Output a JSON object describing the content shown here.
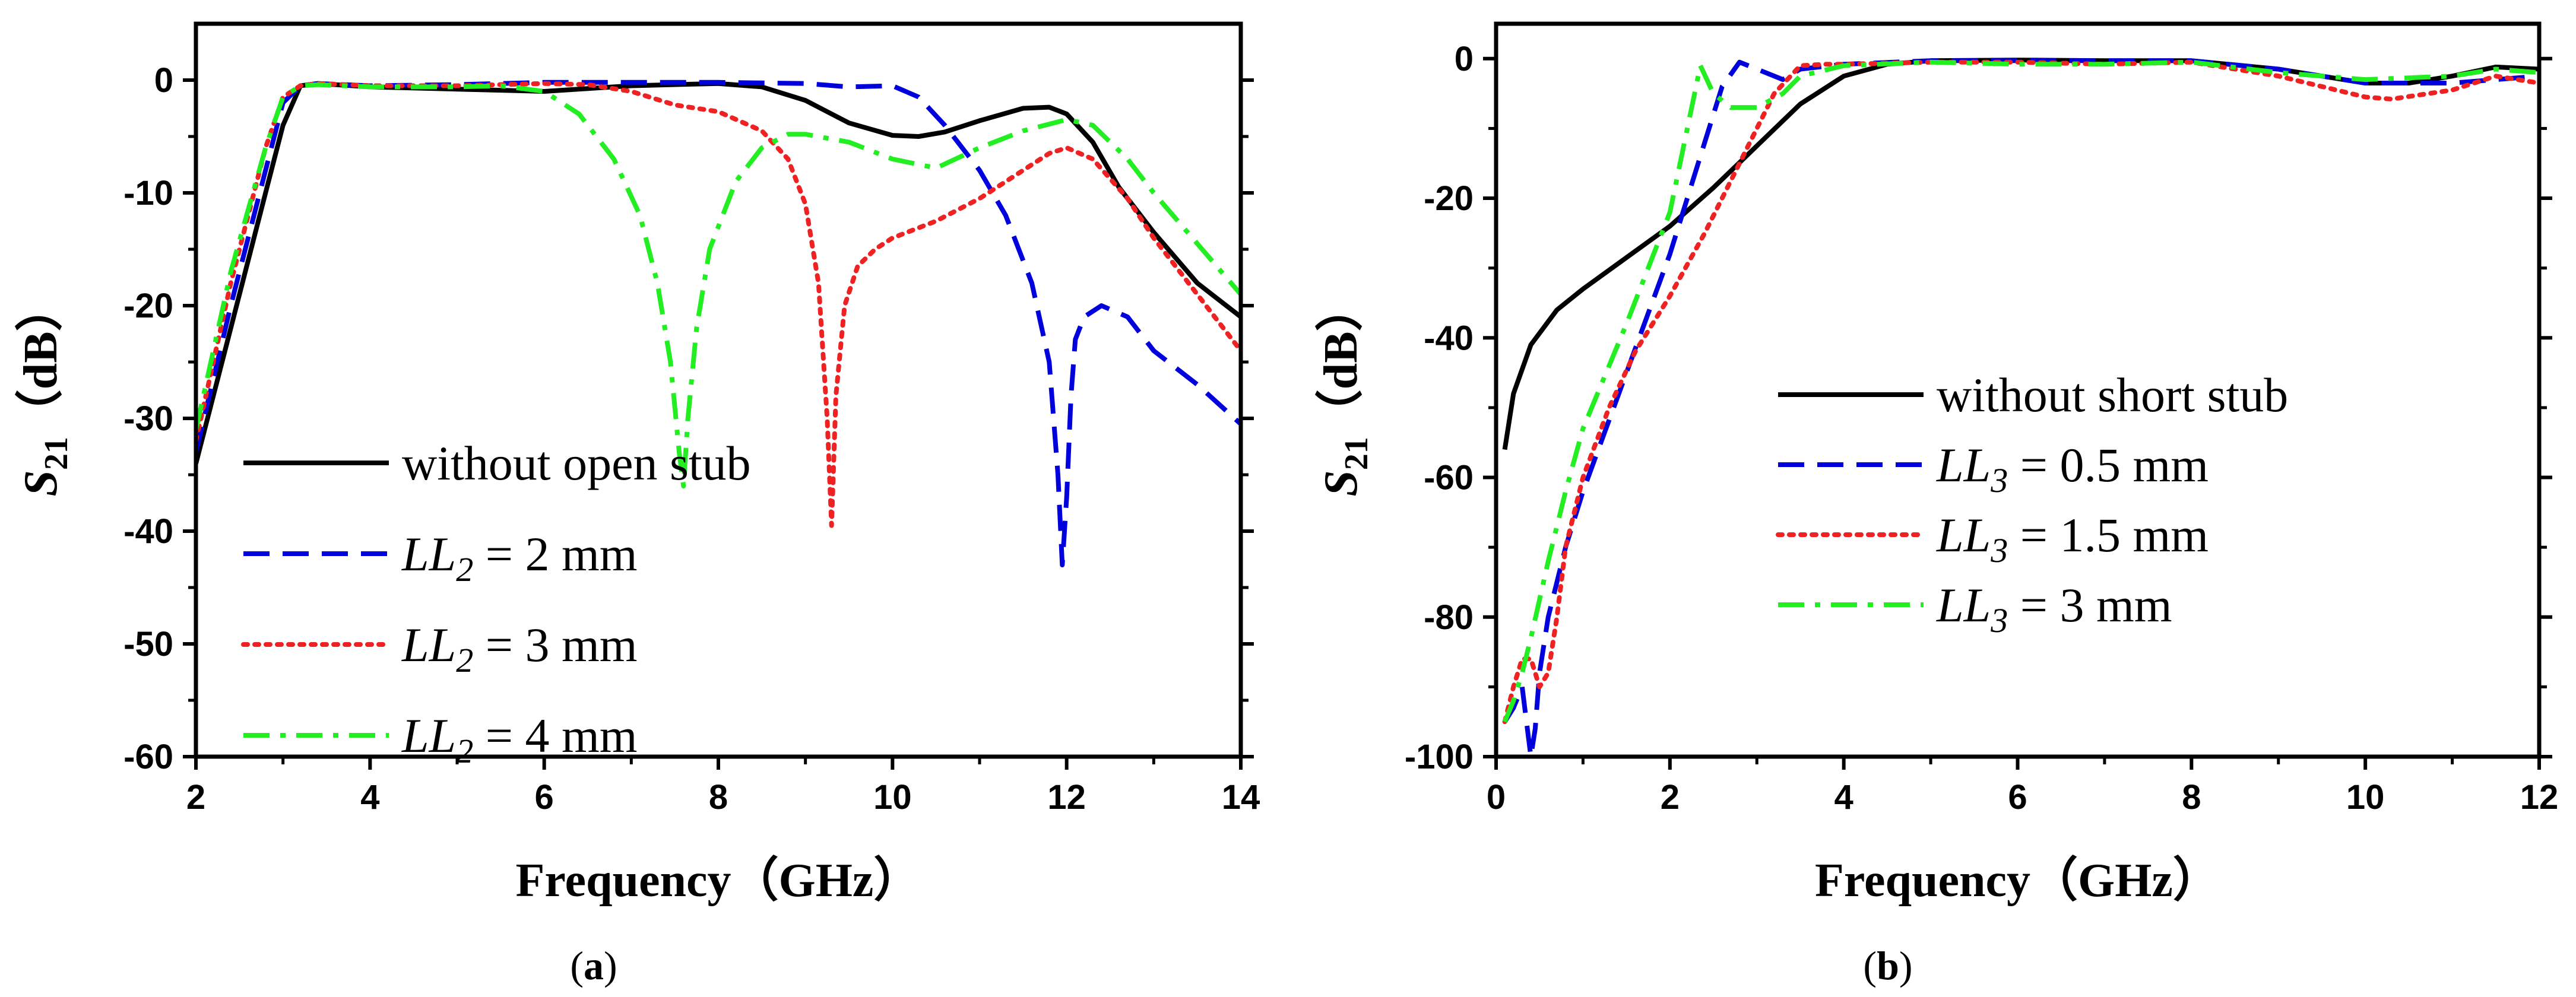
{
  "chart_data": [
    {
      "type": "line",
      "panel": "a",
      "caption": "(a)",
      "caption_letter": "a",
      "xlabel": "Frequency（GHz）",
      "ylabel": "S21（dB）",
      "ylabel_main": "S",
      "ylabel_sub": "21",
      "ylabel_unit": "（dB）",
      "xlim": [
        2,
        14
      ],
      "ylim": [
        -60,
        5
      ],
      "xticks": [
        2,
        4,
        6,
        8,
        10,
        12,
        14
      ],
      "xtick_labels": [
        "2",
        "4",
        "6",
        "8",
        "10",
        "12",
        "14"
      ],
      "yticks": [
        0,
        -10,
        -20,
        -30,
        -40,
        -50,
        -60
      ],
      "ytick_labels": [
        "0",
        "-10",
        "-20",
        "-30",
        "-40",
        "-50",
        "-60"
      ],
      "legend_position": "bottom-left",
      "series": [
        {
          "name": "without open stub",
          "legend": {
            "text": "without open stub"
          },
          "color": "#000000",
          "style": "solid",
          "x": [
            2.0,
            2.4,
            2.8,
            3.0,
            3.2,
            3.4,
            4.0,
            5.0,
            6.0,
            7.0,
            8.0,
            8.5,
            9.0,
            9.5,
            10.0,
            10.3,
            10.6,
            11.0,
            11.5,
            11.8,
            12.0,
            12.3,
            12.6,
            13.0,
            13.5,
            14.0
          ],
          "y": [
            -34,
            -22,
            -10,
            -4,
            -0.5,
            -0.3,
            -0.6,
            -0.8,
            -1.0,
            -0.5,
            -0.3,
            -0.6,
            -1.8,
            -3.8,
            -4.9,
            -5.0,
            -4.6,
            -3.6,
            -2.5,
            -2.4,
            -3.0,
            -5.5,
            -9.5,
            -13.5,
            -18,
            -21
          ]
        },
        {
          "name": "LL2 = 2 mm",
          "legend": {
            "pre": "LL",
            "sub": "2",
            "post": " = 2 mm"
          },
          "color": "#0000dd",
          "style": "dashed",
          "x": [
            2.0,
            2.4,
            2.8,
            3.0,
            3.2,
            3.4,
            4.0,
            5.0,
            6.0,
            7.0,
            8.0,
            9.0,
            9.5,
            10.0,
            10.3,
            10.6,
            11.0,
            11.3,
            11.6,
            11.8,
            11.9,
            11.95,
            12.0,
            12.05,
            12.1,
            12.2,
            12.4,
            12.7,
            13.0,
            13.5,
            14.0
          ],
          "y": [
            -33,
            -20,
            -8,
            -2,
            -0.5,
            -0.3,
            -0.5,
            -0.4,
            -0.2,
            -0.2,
            -0.2,
            -0.3,
            -0.6,
            -0.5,
            -1.5,
            -4.0,
            -8.0,
            -12.0,
            -18.0,
            -25.0,
            -35.0,
            -43.0,
            -37.0,
            -28.0,
            -23.0,
            -21.0,
            -20.0,
            -21.0,
            -24.0,
            -27.0,
            -30.5
          ]
        },
        {
          "name": "LL2 = 3 mm",
          "legend": {
            "pre": "LL",
            "sub": "2",
            "post": " = 3 mm"
          },
          "color": "#ee2222",
          "style": "dotted",
          "x": [
            2.0,
            2.4,
            2.8,
            3.0,
            3.2,
            3.4,
            4.0,
            5.0,
            6.0,
            6.5,
            7.0,
            7.5,
            8.0,
            8.5,
            8.8,
            9.0,
            9.15,
            9.25,
            9.3,
            9.35,
            9.45,
            9.6,
            9.8,
            10.0,
            10.5,
            11.0,
            11.5,
            11.8,
            12.0,
            12.3,
            12.7,
            13.0,
            13.5,
            14.0
          ],
          "y": [
            -32,
            -18,
            -6,
            -1.5,
            -0.5,
            -0.3,
            -0.5,
            -0.5,
            -0.3,
            -0.4,
            -1.0,
            -2.2,
            -2.8,
            -4.5,
            -7.0,
            -11.0,
            -18.0,
            -30.0,
            -39.5,
            -28.0,
            -20.0,
            -16.5,
            -15.0,
            -14.0,
            -12.5,
            -10.5,
            -8.0,
            -6.5,
            -6.0,
            -7.0,
            -10.5,
            -14.0,
            -19.0,
            -24.0
          ]
        },
        {
          "name": "LL2 = 4 mm",
          "legend": {
            "pre": "LL",
            "sub": "2",
            "post": " = 4 mm"
          },
          "color": "#22ee22",
          "style": "dashdot",
          "x": [
            2.0,
            2.4,
            2.8,
            3.0,
            3.2,
            3.4,
            4.0,
            5.0,
            5.5,
            6.0,
            6.4,
            6.8,
            7.1,
            7.3,
            7.45,
            7.55,
            7.6,
            7.65,
            7.75,
            7.9,
            8.2,
            8.5,
            8.8,
            9.0,
            9.5,
            10.0,
            10.5,
            11.0,
            11.5,
            12.0,
            12.3,
            12.7,
            13.0,
            13.5,
            14.0
          ],
          "y": [
            -31,
            -17,
            -6,
            -1.5,
            -0.5,
            -0.4,
            -0.6,
            -0.6,
            -0.5,
            -1.0,
            -3.0,
            -7.0,
            -12.0,
            -18.0,
            -25.0,
            -33.0,
            -36.0,
            -30.0,
            -22.0,
            -15.0,
            -9.0,
            -6.0,
            -4.8,
            -4.8,
            -5.5,
            -7.0,
            -7.8,
            -6.0,
            -4.5,
            -3.5,
            -4.0,
            -7.0,
            -10.0,
            -14.5,
            -19.0
          ]
        }
      ]
    },
    {
      "type": "line",
      "panel": "b",
      "caption": "(b)",
      "caption_letter": "b",
      "xlabel": "Frequency（GHz）",
      "ylabel": "S21（dB）",
      "ylabel_main": "S",
      "ylabel_sub": "21",
      "ylabel_unit": "（dB）",
      "xlim": [
        0,
        12
      ],
      "ylim": [
        -100,
        5
      ],
      "xticks": [
        0,
        2,
        4,
        6,
        8,
        10,
        12
      ],
      "xtick_labels": [
        "0",
        "2",
        "4",
        "6",
        "8",
        "10",
        "12"
      ],
      "yticks": [
        0,
        -20,
        -40,
        -60,
        -80,
        -100
      ],
      "ytick_labels": [
        "0",
        "-20",
        "-40",
        "-60",
        "-80",
        "-100"
      ],
      "legend_position": "center-left",
      "series": [
        {
          "name": "without short stub",
          "legend": {
            "text": "without short stub"
          },
          "color": "#000000",
          "style": "solid",
          "x": [
            0.1,
            0.2,
            0.4,
            0.7,
            1.0,
            1.5,
            2.0,
            2.5,
            3.0,
            3.5,
            4.0,
            4.5,
            5.0,
            6.0,
            7.0,
            8.0,
            9.0,
            10.0,
            10.5,
            11.0,
            11.5,
            12.0
          ],
          "y": [
            -56,
            -48,
            -41,
            -36,
            -33,
            -28.5,
            -24,
            -18.5,
            -12.5,
            -6.5,
            -2.5,
            -0.8,
            -0.3,
            -0.2,
            -0.3,
            -0.3,
            -1.5,
            -3.5,
            -3.5,
            -2.5,
            -1.2,
            -1.5
          ]
        },
        {
          "name": "LL3 = 0.5 mm",
          "legend": {
            "pre": "LL",
            "sub": "3",
            "post": " = 0.5 mm"
          },
          "color": "#0000dd",
          "style": "dashed",
          "x": [
            0.1,
            0.2,
            0.3,
            0.35,
            0.4,
            0.45,
            0.5,
            0.6,
            0.8,
            1.0,
            1.5,
            2.0,
            2.4,
            2.6,
            2.8,
            3.0,
            3.3,
            3.5,
            4.0,
            5.0,
            6.0,
            7.0,
            8.0,
            9.0,
            10.0,
            11.0,
            12.0
          ],
          "y": [
            -95,
            -93,
            -90,
            -95,
            -100,
            -96,
            -88,
            -80,
            -70,
            -62,
            -45,
            -28,
            -12,
            -4,
            -0.5,
            -1.5,
            -3.0,
            -1.5,
            -0.8,
            -0.3,
            -0.3,
            -0.3,
            -0.3,
            -1.5,
            -3.5,
            -3.5,
            -2.5
          ]
        },
        {
          "name": "LL3 = 1.5 mm",
          "legend": {
            "pre": "LL",
            "sub": "3",
            "post": " = 1.5 mm"
          },
          "color": "#ee2222",
          "style": "dotted",
          "x": [
            0.1,
            0.2,
            0.3,
            0.4,
            0.5,
            0.6,
            0.7,
            0.8,
            1.0,
            1.3,
            1.6,
            2.0,
            2.4,
            2.8,
            3.2,
            3.5,
            3.8,
            4.0,
            5.0,
            6.0,
            7.0,
            8.0,
            9.0,
            10.0,
            10.3,
            11.0,
            11.5,
            12.0
          ],
          "y": [
            -95,
            -90,
            -86,
            -86,
            -90,
            -88,
            -80,
            -70,
            -60,
            -50,
            -42,
            -34,
            -25,
            -15,
            -5,
            -1,
            -0.8,
            -0.8,
            -0.5,
            -0.5,
            -0.8,
            -0.5,
            -2.5,
            -5.5,
            -5.8,
            -4.5,
            -2.5,
            -3.5
          ]
        },
        {
          "name": "LL3 = 3 mm",
          "legend": {
            "pre": "LL",
            "sub": "3",
            "post": " = 3 mm"
          },
          "color": "#22ee22",
          "style": "dashdot",
          "x": [
            0.1,
            0.2,
            0.3,
            0.4,
            0.6,
            0.8,
            1.0,
            1.5,
            2.0,
            2.2,
            2.35,
            2.5,
            2.7,
            3.0,
            3.3,
            3.5,
            4.0,
            5.0,
            6.0,
            7.0,
            8.0,
            9.0,
            10.0,
            11.0,
            11.5,
            12.0
          ],
          "y": [
            -95,
            -92,
            -88,
            -83,
            -72,
            -62,
            -53,
            -38,
            -22,
            -10,
            -1,
            -5,
            -7,
            -7,
            -5,
            -2.5,
            -1,
            -0.5,
            -0.8,
            -0.8,
            -0.5,
            -2.0,
            -3.0,
            -2.5,
            -1.5,
            -2.0
          ]
        }
      ]
    }
  ]
}
